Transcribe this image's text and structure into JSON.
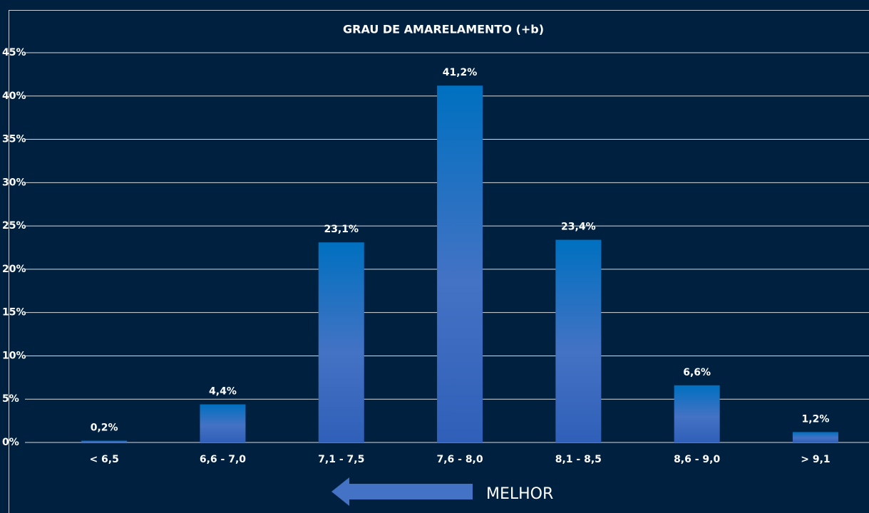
{
  "chart_data": {
    "type": "bar",
    "title": "GRAU DE AMARELAMENTO (+b)",
    "categories": [
      "< 6,5",
      "6,6 - 7,0",
      "7,1 - 7,5",
      "7,6 - 8,0",
      "8,1 - 8,5",
      "8,6 - 9,0",
      "> 9,1"
    ],
    "values": [
      0.2,
      4.4,
      23.1,
      41.2,
      23.4,
      6.6,
      1.2
    ],
    "value_labels": [
      "0,2%",
      "4,4%",
      "23,1%",
      "41,2%",
      "23,4%",
      "6,6%",
      "1,2%"
    ],
    "color": "#0070c0",
    "ylim": [
      0,
      45
    ],
    "yticks": [
      {
        "value": 0,
        "label": "0%"
      },
      {
        "value": 5,
        "label": "5%"
      },
      {
        "value": 10,
        "label": "10%"
      },
      {
        "value": 15,
        "label": "15%"
      },
      {
        "value": 20,
        "label": "20%"
      },
      {
        "value": 25,
        "label": "25%"
      },
      {
        "value": 30,
        "label": "30%"
      },
      {
        "value": 35,
        "label": "35%"
      },
      {
        "value": 40,
        "label": "40%"
      },
      {
        "value": 45,
        "label": "45%"
      }
    ],
    "grid": true,
    "annotation": "MELHOR"
  }
}
